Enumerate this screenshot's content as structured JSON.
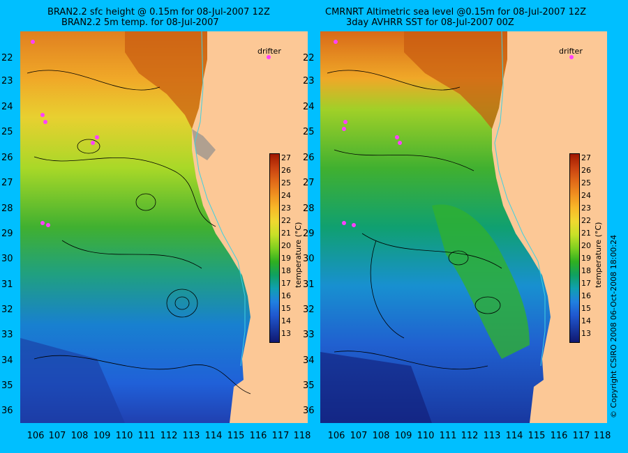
{
  "left_panel": {
    "title_line1": "BRAN2.2 sfc height @ 0.15m for 08-Jul-2007 12Z",
    "title_line2": "BRAN2.2 5m temp. for 08-Jul-2007",
    "drifter_label": "drifter"
  },
  "right_panel": {
    "title_line1": "CMRNRT Altimetric sea level  @0.15m  for 08-Jul-2007 12Z",
    "title_line2": "3day AVHRR SST for 08-Jul-2007 00Z",
    "drifter_label": "drifter"
  },
  "axes": {
    "latitudes": [
      "22",
      "23",
      "24",
      "25",
      "26",
      "27",
      "28",
      "29",
      "30",
      "31",
      "32",
      "33",
      "34",
      "35",
      "36"
    ],
    "longitudes": [
      "106",
      "107",
      "108",
      "109",
      "110",
      "111",
      "112",
      "113",
      "114",
      "115",
      "116",
      "117",
      "118"
    ]
  },
  "colorbar": {
    "ticks": [
      "27",
      "26",
      "25",
      "24",
      "23",
      "22",
      "21",
      "20",
      "19",
      "18",
      "17",
      "16",
      "15",
      "14",
      "13"
    ],
    "title": "temperature (°C)",
    "colors": [
      "#a01800",
      "#c84010",
      "#e06818",
      "#f09020",
      "#f8b828",
      "#f0d830",
      "#c8e028",
      "#80d020",
      "#30b020",
      "#10a060",
      "#10a0b0",
      "#2080e0",
      "#2058d0",
      "#1838a0",
      "#101870"
    ]
  },
  "copyright": "© Copyright CSIRO 2008     06-Oct-2008 18:00:24"
}
